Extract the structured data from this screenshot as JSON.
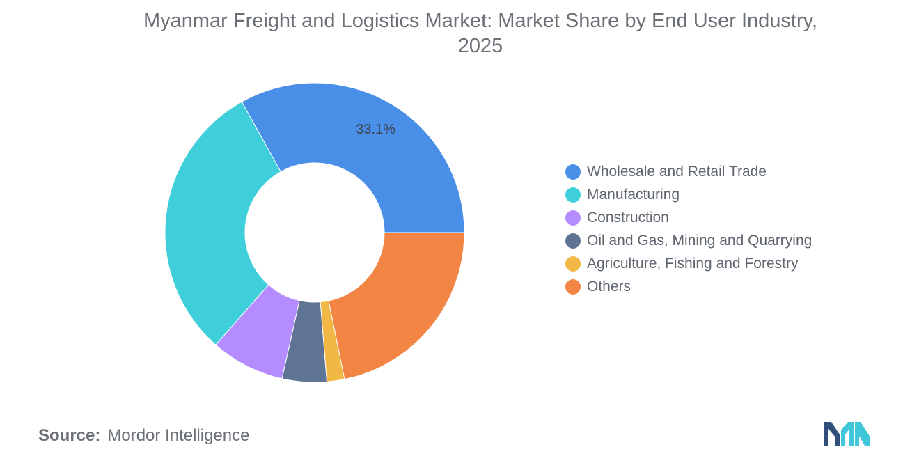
{
  "chart_data": {
    "type": "pie",
    "title_line1": "Myanmar Freight and Logistics Market: Market Share by End User Industry,",
    "title_line2": "2025",
    "categories": [
      "Wholesale and Retail Trade",
      "Manufacturing",
      "Construction",
      "Oil and Gas, Mining and Quarrying",
      "Agriculture, Fishing and Forestry",
      "Others"
    ],
    "values": [
      33.1,
      30.4,
      8.0,
      4.8,
      1.9,
      21.8
    ],
    "colors": [
      "#4a8fe7",
      "#3fcfdb",
      "#b48cff",
      "#5f7394",
      "#f2b845",
      "#f28444"
    ],
    "data_labels": [
      "33.1%",
      "",
      "",
      "",
      "",
      ""
    ],
    "legend_position": "right",
    "donut": true
  },
  "source": {
    "label": "Source:",
    "text": "Mordor Intelligence"
  },
  "logo": {
    "icon": "mordor-intelligence-logo",
    "colors": [
      "#2f4f7a",
      "#3fc6d8"
    ]
  }
}
